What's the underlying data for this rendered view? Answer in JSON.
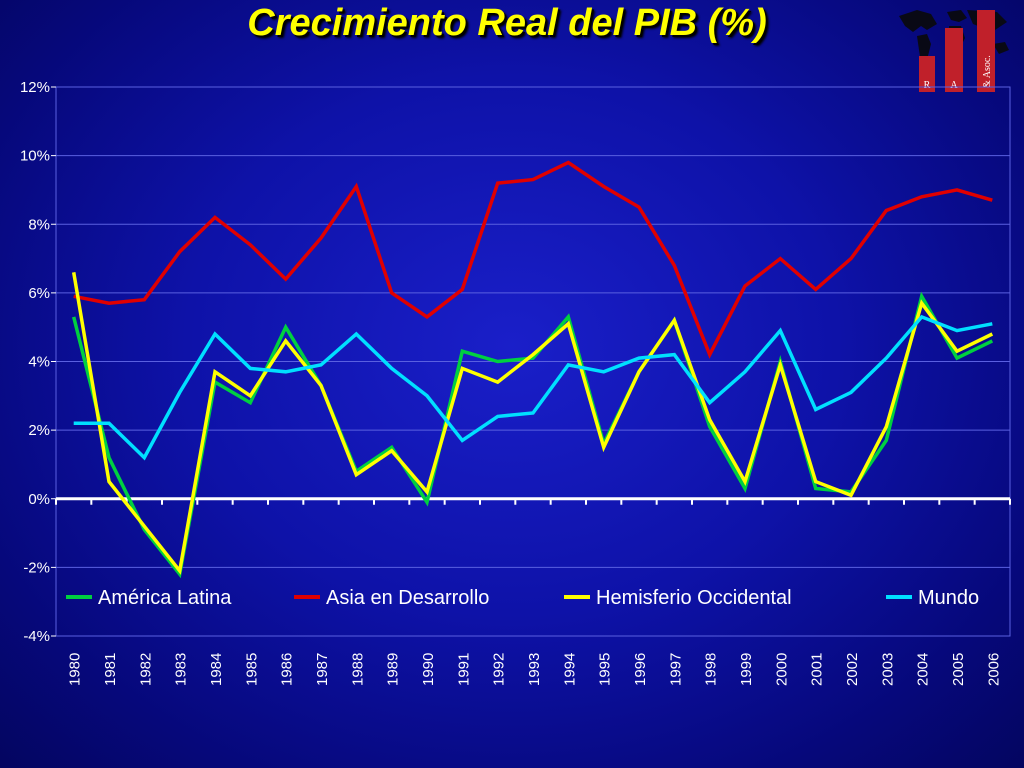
{
  "chart_data": {
    "type": "line",
    "title": "Crecimiento Real del PIB (%)",
    "xlabel": "",
    "ylabel": "",
    "x": [
      "1980",
      "1981",
      "1982",
      "1983",
      "1984",
      "1985",
      "1986",
      "1987",
      "1988",
      "1989",
      "1990",
      "1991",
      "1992",
      "1993",
      "1994",
      "1995",
      "1996",
      "1997",
      "1998",
      "1999",
      "2000",
      "2001",
      "2002",
      "2003",
      "2004",
      "2005",
      "2006"
    ],
    "ylim": [
      -4,
      12
    ],
    "yticks": [
      -4,
      -2,
      0,
      2,
      4,
      6,
      8,
      10,
      12
    ],
    "ytick_labels": [
      "-4%",
      "-2%",
      "0%",
      "2%",
      "4%",
      "6%",
      "8%",
      "10%",
      "12%"
    ],
    "grid": true,
    "legend_position": "bottom",
    "series": [
      {
        "name": "América Latina",
        "color": "#00d040",
        "values": [
          5.3,
          1.2,
          -0.9,
          -2.2,
          3.4,
          2.8,
          5.0,
          3.3,
          0.8,
          1.5,
          -0.1,
          4.3,
          4.0,
          4.1,
          5.3,
          1.6,
          3.7,
          5.2,
          2.1,
          0.3,
          4.0,
          0.3,
          0.2,
          1.7,
          5.9,
          4.1,
          4.6
        ]
      },
      {
        "name": "Asia en Desarrollo",
        "color": "#e00000",
        "values": [
          5.9,
          5.7,
          5.8,
          7.2,
          8.2,
          7.4,
          6.4,
          7.6,
          9.1,
          6.0,
          5.3,
          6.1,
          9.2,
          9.3,
          9.8,
          9.1,
          8.5,
          6.8,
          4.2,
          6.2,
          7.0,
          6.1,
          7.0,
          8.4,
          8.8,
          9.0,
          8.7
        ]
      },
      {
        "name": "Hemisferio Occidental",
        "color": "#ffff00",
        "values": [
          6.6,
          0.5,
          -0.8,
          -2.1,
          3.7,
          3.0,
          4.6,
          3.3,
          0.7,
          1.4,
          0.2,
          3.8,
          3.4,
          4.2,
          5.1,
          1.5,
          3.7,
          5.2,
          2.3,
          0.5,
          3.9,
          0.5,
          0.1,
          2.1,
          5.7,
          4.3,
          4.8
        ]
      },
      {
        "name": "Mundo",
        "color": "#00e0ff",
        "values": [
          2.2,
          2.2,
          1.2,
          3.1,
          4.8,
          3.8,
          3.7,
          3.9,
          4.8,
          3.8,
          3.0,
          1.7,
          2.4,
          2.5,
          3.9,
          3.7,
          4.1,
          4.2,
          2.8,
          3.7,
          4.9,
          2.6,
          3.1,
          4.1,
          5.3,
          4.9,
          5.1
        ]
      }
    ]
  },
  "logo": {
    "letters": [
      "R",
      "A",
      "& Asoc."
    ],
    "colors": [
      "#c0202a",
      "#c0202a",
      "#c0202a"
    ]
  }
}
